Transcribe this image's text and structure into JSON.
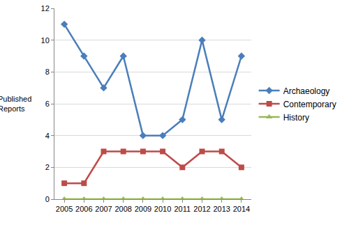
{
  "chart_data": {
    "type": "line",
    "y_label": "Published Reports",
    "categories": [
      "2005",
      "2006",
      "2007",
      "2008",
      "2009",
      "2010",
      "2011",
      "2012",
      "2013",
      "2014"
    ],
    "series": [
      {
        "name": "Archaeology",
        "color": "#4a7ebb",
        "marker": "diamond",
        "values": [
          11,
          9,
          7,
          9,
          4,
          4,
          5,
          10,
          5,
          9
        ]
      },
      {
        "name": "Contemporary",
        "color": "#be4b48",
        "marker": "square",
        "values": [
          1,
          1,
          3,
          3,
          3,
          3,
          2,
          3,
          3,
          2
        ]
      },
      {
        "name": "History",
        "color": "#98b954",
        "marker": "triangle-up",
        "values": [
          0,
          0,
          0,
          0,
          0,
          0,
          0,
          0,
          0,
          0
        ]
      }
    ],
    "ylim": [
      0,
      12
    ],
    "yticks": [
      0,
      2,
      4,
      6,
      8,
      10,
      12
    ],
    "grid": true,
    "legend": "right"
  }
}
